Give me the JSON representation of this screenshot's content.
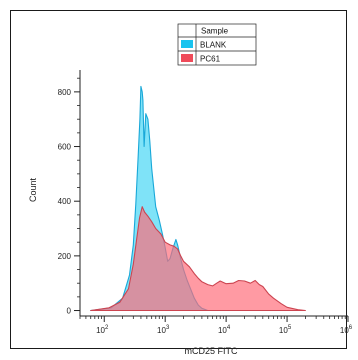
{
  "chart_data": {
    "type": "area",
    "xlabel": "mCD25 FITC",
    "ylabel": "Count",
    "xscale": "log",
    "xlim": [
      40,
      1000000
    ],
    "ylim": [
      -20,
      880
    ],
    "x_ticks": [
      {
        "value": 100,
        "base": "10",
        "exp": "2"
      },
      {
        "value": 1000,
        "base": "10",
        "exp": "3"
      },
      {
        "value": 10000,
        "base": "10",
        "exp": "4"
      },
      {
        "value": 100000,
        "base": "10",
        "exp": "5"
      },
      {
        "value": 1000000,
        "base": "10",
        "exp": "6"
      }
    ],
    "y_ticks": [
      0,
      200,
      400,
      600,
      800
    ],
    "legend": {
      "title": "Sample",
      "position": "top-center",
      "entries": [
        {
          "label": "BLANK",
          "color": "#19c3ef"
        },
        {
          "label": "PC61",
          "color": "#ef4b5a"
        }
      ]
    },
    "series": [
      {
        "name": "BLANK",
        "fill": "#4dd8f5",
        "stroke": "#19a8d8",
        "opacity": 0.72,
        "points": [
          [
            60,
            0
          ],
          [
            130,
            10
          ],
          [
            200,
            45
          ],
          [
            260,
            130
          ],
          [
            300,
            240
          ],
          [
            330,
            390
          ],
          [
            360,
            560
          ],
          [
            385,
            700
          ],
          [
            400,
            820
          ],
          [
            420,
            800
          ],
          [
            430,
            770
          ],
          [
            450,
            600
          ],
          [
            480,
            720
          ],
          [
            520,
            700
          ],
          [
            560,
            620
          ],
          [
            600,
            520
          ],
          [
            700,
            380
          ],
          [
            800,
            330
          ],
          [
            900,
            280
          ],
          [
            1000,
            230
          ],
          [
            1100,
            180
          ],
          [
            1200,
            190
          ],
          [
            1350,
            230
          ],
          [
            1500,
            260
          ],
          [
            1600,
            240
          ],
          [
            1800,
            190
          ],
          [
            2000,
            150
          ],
          [
            2300,
            110
          ],
          [
            2600,
            80
          ],
          [
            3000,
            45
          ],
          [
            3500,
            20
          ],
          [
            4000,
            8
          ],
          [
            5000,
            0
          ]
        ]
      },
      {
        "name": "PC61",
        "fill": "#ff6a78",
        "stroke": "#cc4450",
        "opacity": 0.68,
        "points": [
          [
            60,
            0
          ],
          [
            120,
            10
          ],
          [
            180,
            30
          ],
          [
            250,
            80
          ],
          [
            300,
            170
          ],
          [
            340,
            260
          ],
          [
            380,
            340
          ],
          [
            420,
            380
          ],
          [
            460,
            360
          ],
          [
            520,
            345
          ],
          [
            600,
            325
          ],
          [
            700,
            300
          ],
          [
            850,
            280
          ],
          [
            1000,
            250
          ],
          [
            1200,
            240
          ],
          [
            1400,
            235
          ],
          [
            1600,
            225
          ],
          [
            1800,
            200
          ],
          [
            2000,
            180
          ],
          [
            2500,
            160
          ],
          [
            3000,
            135
          ],
          [
            3500,
            118
          ],
          [
            4000,
            105
          ],
          [
            5000,
            95
          ],
          [
            6000,
            90
          ],
          [
            7000,
            100
          ],
          [
            8000,
            108
          ],
          [
            10000,
            98
          ],
          [
            13000,
            100
          ],
          [
            16000,
            110
          ],
          [
            20000,
            108
          ],
          [
            25000,
            100
          ],
          [
            30000,
            110
          ],
          [
            35000,
            95
          ],
          [
            40000,
            88
          ],
          [
            50000,
            60
          ],
          [
            60000,
            45
          ],
          [
            80000,
            25
          ],
          [
            100000,
            12
          ],
          [
            150000,
            3
          ],
          [
            200000,
            0
          ]
        ]
      }
    ]
  }
}
